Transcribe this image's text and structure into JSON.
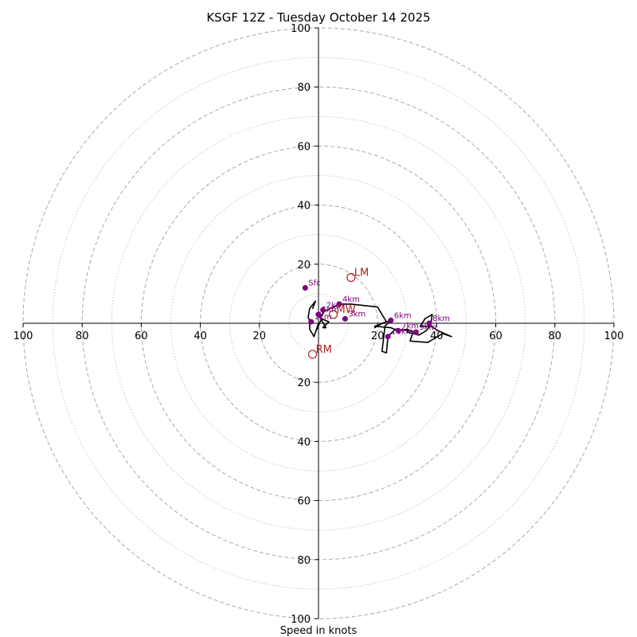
{
  "chart_data": {
    "type": "hodograph",
    "title": "KSGF 12Z - Tuesday October 14 2025",
    "xlabel": "Speed in knots",
    "units": "knots",
    "axis_range": [
      -100,
      100
    ],
    "x_tick_labels": [
      "100",
      "80",
      "60",
      "40",
      "20",
      "20",
      "40",
      "60",
      "80",
      "100"
    ],
    "y_tick_labels": [
      "100",
      "80",
      "60",
      "40",
      "20",
      "20",
      "40",
      "60",
      "80",
      "100"
    ],
    "rings_dashed": [
      20,
      40,
      60,
      80,
      100
    ],
    "rings_dotted": [
      10,
      30,
      50,
      70,
      90
    ],
    "wind_profile": [
      [
        -2.0,
        5.0
      ],
      [
        -1.0,
        7.5
      ],
      [
        -3.0,
        5.0
      ],
      [
        -3.5,
        2.0
      ],
      [
        -3.0,
        1.0
      ],
      [
        -3.0,
        -2.0
      ],
      [
        -1.5,
        -4.5
      ],
      [
        0.0,
        0.0
      ],
      [
        -0.5,
        -2.0
      ],
      [
        1.0,
        1.5
      ],
      [
        3.5,
        0.5
      ],
      [
        1.5,
        -1.5
      ],
      [
        2.5,
        -1.5
      ],
      [
        0.5,
        2.0
      ],
      [
        2.0,
        4.0
      ],
      [
        7.0,
        6.5
      ],
      [
        11.0,
        6.5
      ],
      [
        20.0,
        5.5
      ],
      [
        23.0,
        0.5
      ],
      [
        20.5,
        -0.5
      ],
      [
        19.0,
        -1.0
      ],
      [
        24.5,
        -1.5
      ],
      [
        27.0,
        -2.5
      ],
      [
        30.0,
        -2.0
      ],
      [
        32.0,
        -3.0
      ],
      [
        31.0,
        -6.0
      ],
      [
        37.0,
        -6.5
      ],
      [
        42.0,
        -3.5
      ],
      [
        45.0,
        -4.5
      ],
      [
        40.5,
        -2.5
      ],
      [
        38.0,
        -1.0
      ],
      [
        34.5,
        -1.0
      ],
      [
        36.0,
        1.5
      ],
      [
        38.5,
        3.0
      ],
      [
        38.0,
        -0.5
      ],
      [
        36.5,
        -2.5
      ],
      [
        34.0,
        -4.0
      ],
      [
        30.0,
        -3.0
      ],
      [
        30.5,
        -2.5
      ],
      [
        26.0,
        -2.0
      ],
      [
        23.5,
        -4.5
      ],
      [
        23.0,
        -10.0
      ],
      [
        21.5,
        -9.5
      ],
      [
        22.5,
        -1.0
      ],
      [
        24.5,
        1.0
      ],
      [
        21.5,
        0.0
      ],
      [
        19.0,
        -1.5
      ]
    ],
    "height_markers": [
      {
        "label": "Sfc",
        "u": -4.5,
        "v": 12.0
      },
      {
        "label": "1km",
        "u": -2.5,
        "v": 0.5
      },
      {
        "label": "2km",
        "u": 1.5,
        "v": 4.5
      },
      {
        "label": "3km",
        "u": 9.0,
        "v": 1.5
      },
      {
        "label": "4km",
        "u": 7.0,
        "v": 6.5
      },
      {
        "label": "5km",
        "u": 0.0,
        "v": 3.0
      },
      {
        "label": "6km",
        "u": 24.5,
        "v": 1.0
      },
      {
        "label": "7km",
        "u": 27.0,
        "v": -2.5
      },
      {
        "label": "8km",
        "u": 37.5,
        "v": 0.0
      },
      {
        "label": "9km",
        "u": 33.0,
        "v": -3.0
      },
      {
        "label": "10km",
        "u": 23.5,
        "v": -4.5
      }
    ],
    "storm_motion": [
      {
        "label": "LM",
        "u": 11.0,
        "v": 15.5
      },
      {
        "label": "MW",
        "u": 5.0,
        "v": 3.0
      },
      {
        "label": "RM",
        "u": -2.0,
        "v": -10.5
      }
    ],
    "colors": {
      "profile": "#000000",
      "markers": "#800080",
      "marker_labels": "#800080",
      "storm_motion": "#b22222",
      "rings": "#b0b0b0",
      "axes": "#000000"
    }
  }
}
